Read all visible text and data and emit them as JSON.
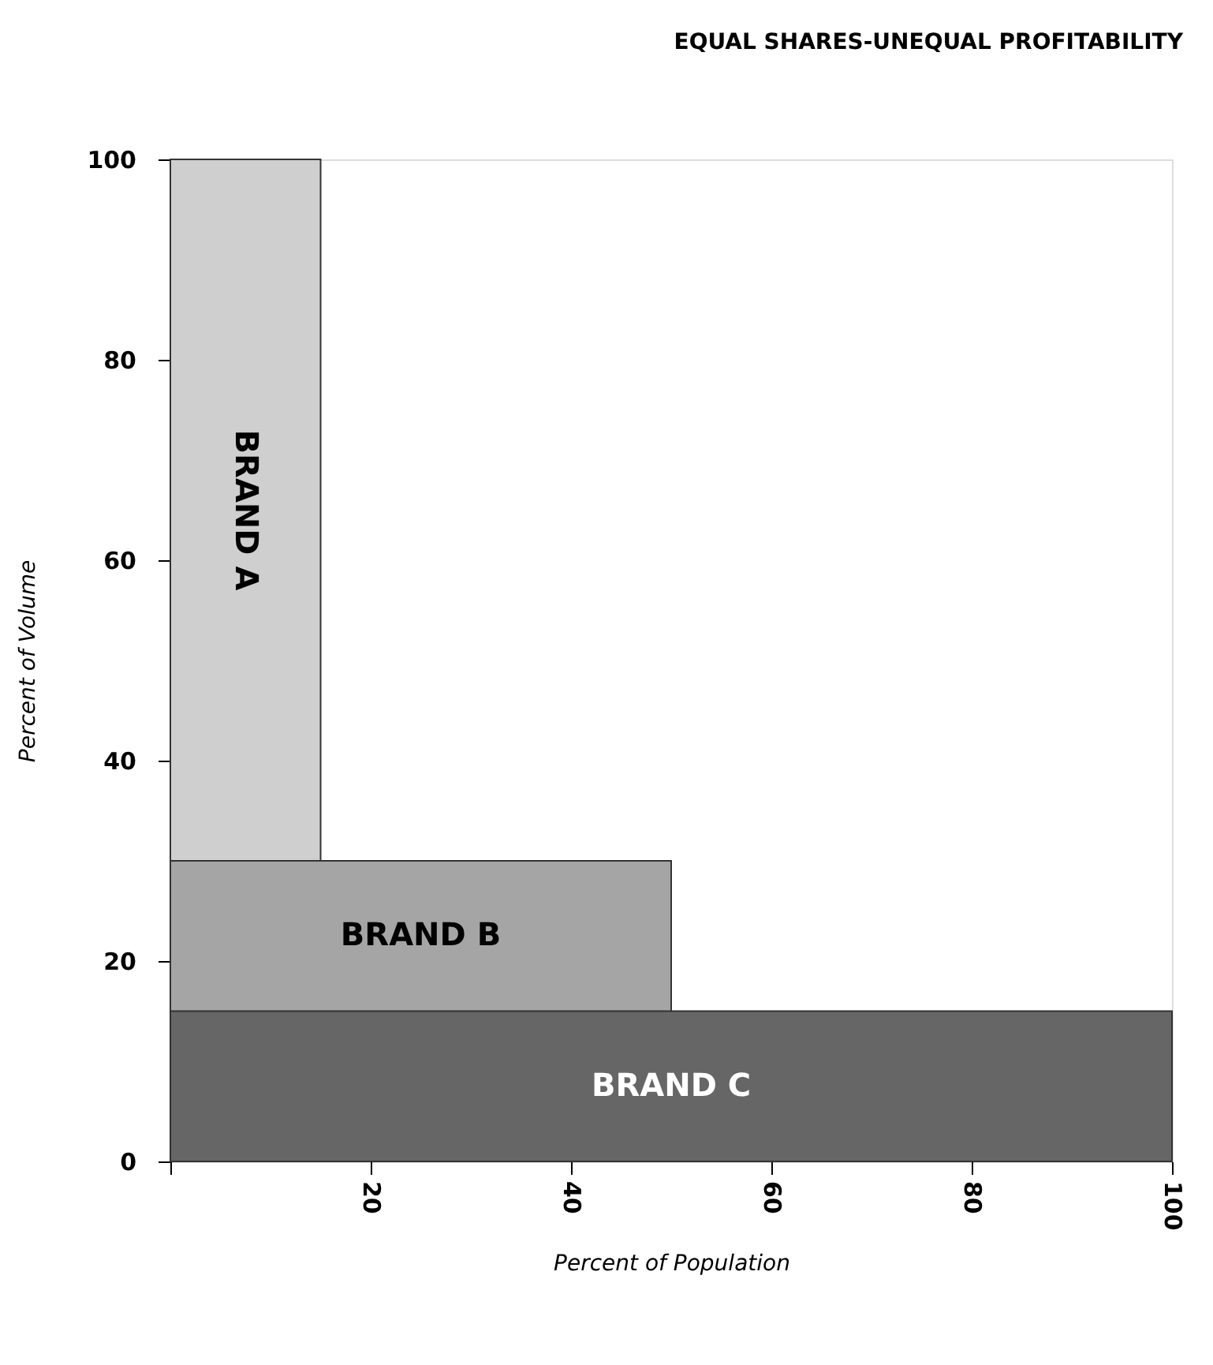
{
  "chart_data": {
    "type": "area",
    "title": "EQUAL SHARES-UNEQUAL PROFITABILITY",
    "xlabel": "Percent of Population",
    "ylabel": "Percent of Volume",
    "xlim": [
      0,
      100
    ],
    "ylim": [
      0,
      100
    ],
    "xticks": [
      {
        "value": 0,
        "label": null
      },
      20,
      40,
      60,
      80,
      100
    ],
    "yticks": [
      0,
      20,
      40,
      60,
      80,
      100
    ],
    "grid": false,
    "series": [
      {
        "name": "BRAND A",
        "color": "#cfcfcf",
        "x": [
          0,
          15
        ],
        "values": [
          100,
          100
        ]
      },
      {
        "name": "BRAND B",
        "color": "#a5a5a5",
        "x": [
          0,
          50
        ],
        "values": [
          30,
          30
        ]
      },
      {
        "name": "BRAND C",
        "color": "#666666",
        "x": [
          0,
          100
        ],
        "values": [
          15,
          15
        ]
      }
    ]
  }
}
